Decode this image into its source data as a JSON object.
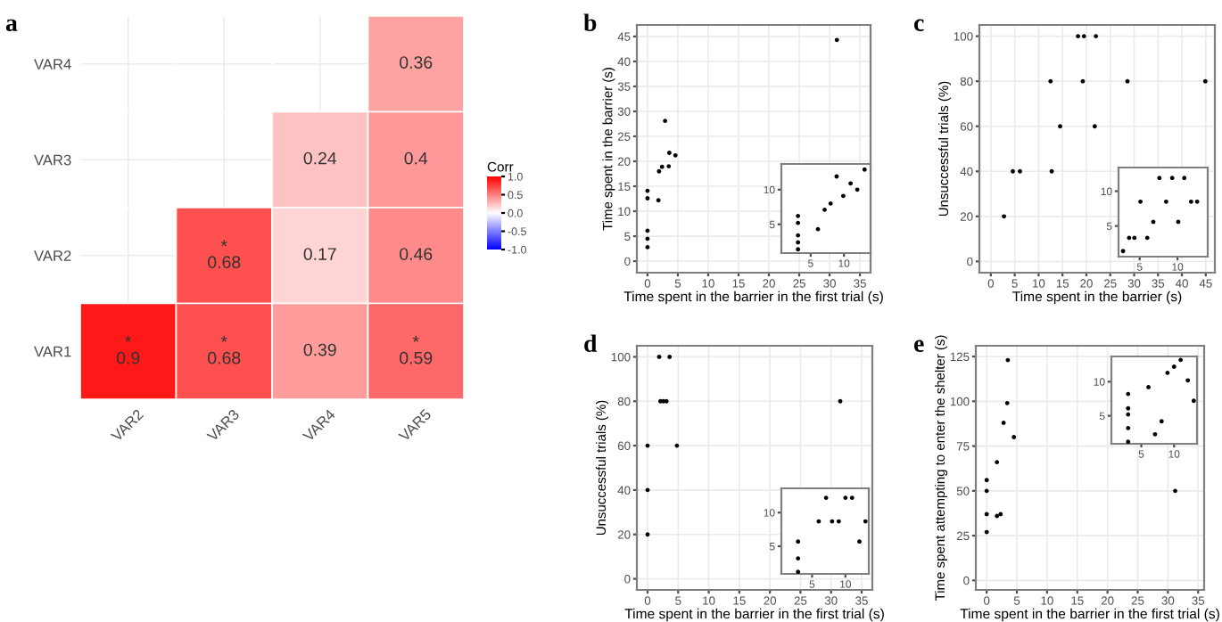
{
  "chart_data": [
    {
      "type": "heatmap",
      "title": "a",
      "categories": [
        "VAR2",
        "VAR3",
        "VAR4",
        "VAR5"
      ],
      "y_categories": [
        "VAR4",
        "VAR3",
        "VAR2",
        "VAR1"
      ],
      "cells": [
        [
          null,
          null,
          null,
          0.36
        ],
        [
          null,
          null,
          0.24,
          0.4
        ],
        [
          null,
          0.68,
          0.17,
          0.46
        ],
        [
          0.9,
          0.68,
          0.39,
          0.59
        ]
      ],
      "cell_labels": [
        [
          null,
          null,
          null,
          "0.36"
        ],
        [
          null,
          null,
          "0.24",
          "0.4"
        ],
        [
          null,
          "*\n0.68",
          "0.17",
          "0.46"
        ],
        [
          "*\n0.9",
          "*\n0.68",
          "0.39",
          "*\n0.59"
        ]
      ],
      "clabel": "Corr",
      "clim": [
        -1,
        1
      ],
      "cticks": [
        {
          "value": -1,
          "label": "-1.0"
        },
        -0.5,
        {
          "value": 0,
          "label": "0.0"
        },
        0.5,
        {
          "value": 1,
          "label": "1.0"
        }
      ],
      "colors": [
        "#0000ff",
        "#ffffff",
        "#ff0000"
      ],
      "grid": true
    },
    {
      "type": "scatter",
      "title": "b",
      "xlabel": "Time spent in the barrier in the first trial (s)",
      "ylabel": "Time spent in the barrier (s)",
      "series": [
        {
          "color": "#000000",
          "x": [
            0,
            0,
            0,
            0,
            0,
            1.8,
            1.9,
            2.4,
            2.9,
            3.5,
            3.6,
            4.6,
            31.2
          ],
          "values": [
            2.8,
            4.5,
            6.1,
            12.6,
            14.1,
            12.2,
            18,
            18.9,
            28.1,
            19,
            21.7,
            21.2,
            44.3
          ]
        }
      ],
      "xlim": [
        -1.75,
        36.75
      ],
      "xticks": [
        0,
        5,
        10,
        15,
        20,
        25,
        30,
        35
      ],
      "ylim": [
        -2.3,
        47.3
      ],
      "yticks": [
        0,
        5,
        10,
        15,
        20,
        25,
        30,
        35,
        40,
        45
      ],
      "grid": true,
      "marker": "circle"
    },
    {
      "type": "scatter",
      "series": [
        {
          "color": "#000000",
          "x": [
            3.1,
            3.1,
            3.1,
            3.1,
            3.1,
            6.1,
            7.1,
            8,
            8.9,
            9.9,
            11,
            12,
            13.1
          ],
          "values": [
            1.4,
            2.4,
            3.4,
            5.2,
            6.2,
            4.3,
            7.1,
            8,
            11.9,
            9.1,
            10.9,
            10,
            12.9
          ]
        }
      ],
      "xlim": [
        0.6,
        14
      ],
      "xticks": [
        5,
        10
      ],
      "ylim": [
        0.85,
        13.7
      ],
      "yticks": [
        5,
        10
      ],
      "marker": "circle"
    },
    {
      "type": "scatter",
      "title": "c",
      "xlabel": "Time spent in the barrier (s)",
      "ylabel": "Unsuccessful trials (%)",
      "series": [
        {
          "color": "#000000",
          "x": [
            2.75,
            4.6,
            6.1,
            12.5,
            12.75,
            14.5,
            18.25,
            19.5,
            19.25,
            22,
            21.75,
            28.6,
            44.9
          ],
          "values": [
            20,
            40,
            40,
            80,
            40,
            60,
            100,
            100,
            80,
            100,
            60,
            80,
            80
          ]
        }
      ],
      "xlim": [
        -2.4,
        46.9
      ],
      "xticks": [
        0,
        5,
        10,
        15,
        20,
        25,
        30,
        35,
        40,
        45
      ],
      "ylim": [
        -5,
        105
      ],
      "yticks": [
        0,
        20,
        40,
        60,
        80,
        100
      ],
      "grid": true,
      "marker": "circle"
    },
    {
      "type": "scatter",
      "series": [
        {
          "color": "#000000",
          "x": [
            2.8,
            3.6,
            4.3,
            5.1,
            6,
            6.8,
            7.6,
            8.5,
            9.3,
            10.1,
            10.9,
            11.8,
            12.6
          ],
          "values": [
            1.4,
            3.3,
            3.3,
            8.5,
            3.3,
            5.6,
            11.9,
            8.5,
            11.9,
            5.6,
            11.9,
            8.5,
            8.5
          ]
        }
      ],
      "xlim": [
        2.2,
        14
      ],
      "xticks": [
        5,
        10
      ],
      "ylim": [
        0.6,
        13.4
      ],
      "yticks": [
        5,
        10
      ],
      "marker": "circle"
    },
    {
      "type": "scatter",
      "title": "d",
      "xlabel": "Time spent in the barrier in the first trial (s)",
      "ylabel": "Unsuccessful trials (%)",
      "series": [
        {
          "color": "#000000",
          "x": [
            0,
            0,
            0,
            1.9,
            2.1,
            2.6,
            3.1,
            3.6,
            4.8,
            31.5
          ],
          "values": [
            20,
            40,
            60,
            100,
            80,
            80,
            80,
            100,
            60,
            80
          ]
        }
      ],
      "xlim": [
        -1.75,
        36.75
      ],
      "xticks": [
        0,
        5,
        10,
        15,
        20,
        25,
        30,
        35
      ],
      "ylim": [
        -5,
        105
      ],
      "yticks": [
        0,
        20,
        40,
        60,
        80,
        100
      ],
      "grid": true,
      "marker": "circle"
    },
    {
      "type": "scatter",
      "series": [
        {
          "color": "#000000",
          "x": [
            2.9,
            2.9,
            2.9,
            6,
            7.1,
            8,
            9,
            10,
            11,
            12.1,
            13
          ],
          "values": [
            1.2,
            3.2,
            5.7,
            8.7,
            12.2,
            8.7,
            8.7,
            12.2,
            12.2,
            5.7,
            8.7
          ]
        }
      ],
      "xlim": [
        0.4,
        13.5
      ],
      "xticks": [
        5,
        10
      ],
      "ylim": [
        0.9,
        13.6
      ],
      "yticks": [
        5,
        10
      ],
      "marker": "circle"
    },
    {
      "type": "scatter",
      "title": "e",
      "xlabel": "Time spent in the barrier in the first trial (s)",
      "ylabel": "Time spent attempting to enter the shelter (s)",
      "series": [
        {
          "color": "#000000",
          "x": [
            0,
            0,
            0,
            0,
            1.7,
            1.7,
            2.3,
            2.8,
            3.4,
            3.5,
            4.5,
            31.2
          ],
          "values": [
            27,
            37,
            50,
            56,
            66,
            36,
            37,
            88,
            99,
            123,
            80,
            50
          ]
        }
      ],
      "xlim": [
        -1.8,
        36
      ],
      "xticks": [
        0,
        5,
        10,
        15,
        20,
        25,
        30,
        35
      ],
      "ylim": [
        -5.3,
        131
      ],
      "yticks": [
        0,
        25,
        50,
        75,
        100,
        125
      ],
      "grid": true,
      "marker": "circle"
    },
    {
      "type": "scatter",
      "series": [
        {
          "color": "#000000",
          "x": [
            3,
            3,
            3,
            3,
            3,
            6.1,
            7.1,
            8.1,
            9,
            10,
            11,
            12.1,
            13
          ],
          "values": [
            1.2,
            3.2,
            5.2,
            6.1,
            8.2,
            9.2,
            2.3,
            4.2,
            11.3,
            12.2,
            13.2,
            10.2,
            7.2
          ]
        }
      ],
      "xlim": [
        0.45,
        13.5
      ],
      "xticks": [
        5,
        10
      ],
      "ylim": [
        0.9,
        13.7
      ],
      "yticks": [
        5,
        10
      ],
      "marker": "circle"
    }
  ]
}
